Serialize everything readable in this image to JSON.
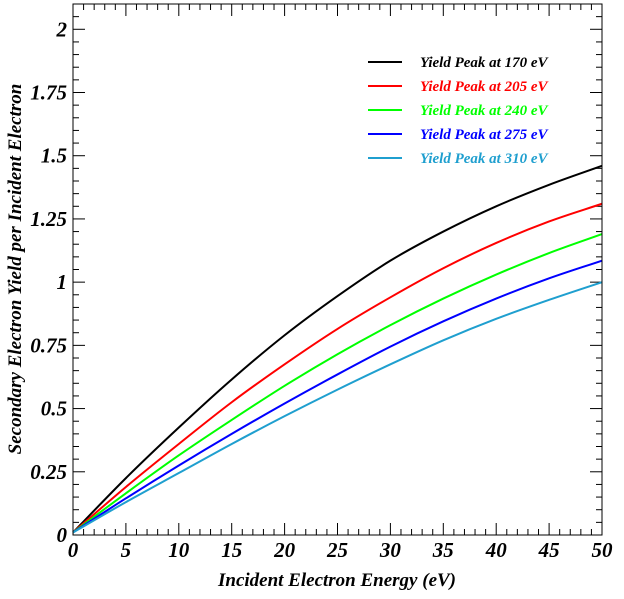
{
  "chart_data": {
    "type": "line",
    "title": "",
    "xlabel": "Incident Electron Energy (eV)",
    "ylabel": "Secondary Electron Yield per Incident Electron",
    "xlim": [
      0,
      50
    ],
    "ylim": [
      0,
      2.1
    ],
    "x_ticks": [
      0,
      5,
      10,
      15,
      20,
      25,
      30,
      35,
      40,
      45,
      50
    ],
    "x_tick_labels": [
      "0",
      "5",
      "10",
      "15",
      "20",
      "25",
      "30",
      "35",
      "40",
      "45",
      "50"
    ],
    "y_ticks": [
      0,
      0.25,
      0.5,
      0.75,
      1,
      1.25,
      1.5,
      1.75,
      2
    ],
    "y_tick_labels": [
      "0",
      "0.25",
      "0.5",
      "0.75",
      "1",
      "1.25",
      "1.5",
      "1.75",
      "2"
    ],
    "grid": false,
    "legend_position": "top-right",
    "x": [
      0,
      5,
      10,
      15,
      20,
      25,
      30,
      35,
      40,
      45,
      50
    ],
    "series": [
      {
        "name": "Yield Peak at 170 eV",
        "color": "#000000",
        "values": [
          0.01,
          0.225,
          0.425,
          0.615,
          0.79,
          0.945,
          1.085,
          1.2,
          1.3,
          1.385,
          1.46
        ]
      },
      {
        "name": "Yield Peak at 205 eV",
        "color": "#ff0000",
        "values": [
          0.01,
          0.19,
          0.36,
          0.525,
          0.675,
          0.815,
          0.94,
          1.055,
          1.155,
          1.24,
          1.31
        ]
      },
      {
        "name": "Yield Peak at 240 eV",
        "color": "#00ff00",
        "values": [
          0.01,
          0.165,
          0.315,
          0.455,
          0.59,
          0.715,
          0.83,
          0.935,
          1.03,
          1.115,
          1.19
        ]
      },
      {
        "name": "Yield Peak at 275 eV",
        "color": "#0000ff",
        "values": [
          0.01,
          0.145,
          0.275,
          0.4,
          0.52,
          0.635,
          0.745,
          0.845,
          0.935,
          1.015,
          1.085
        ]
      },
      {
        "name": "Yield Peak at 310 eV",
        "color": "#1f9fcf",
        "values": [
          0.01,
          0.13,
          0.245,
          0.36,
          0.47,
          0.575,
          0.675,
          0.77,
          0.855,
          0.93,
          1.0
        ]
      }
    ]
  }
}
